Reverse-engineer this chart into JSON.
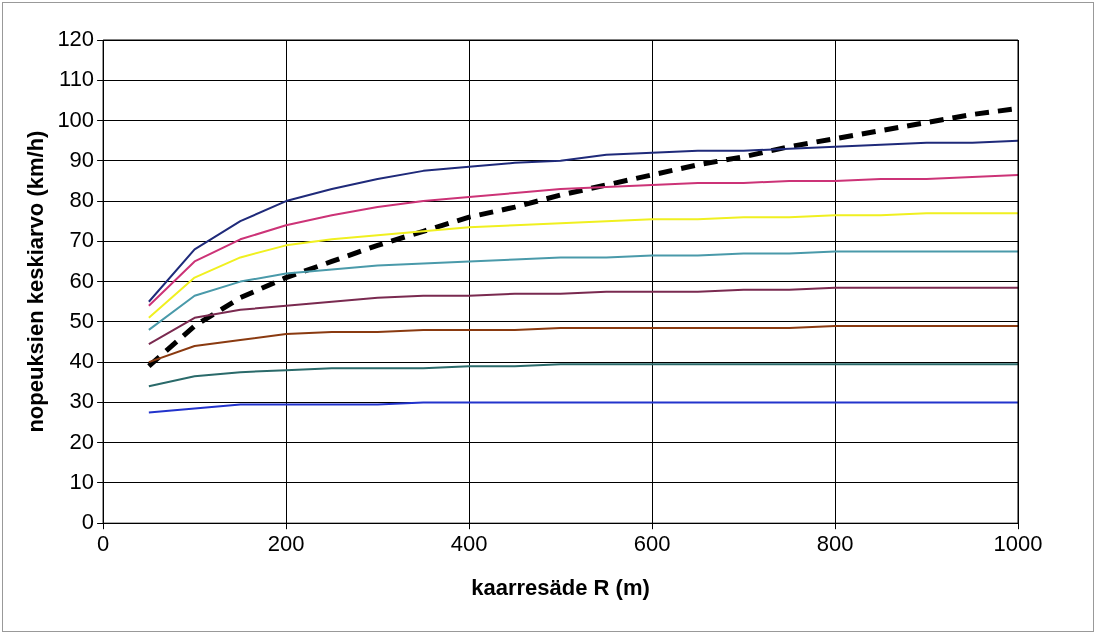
{
  "chart_data": {
    "type": "line",
    "xlabel": "kaarresäde R (m)",
    "ylabel": "nopeuksien keskiarvo (km/h)",
    "x": [
      50,
      100,
      150,
      200,
      250,
      300,
      350,
      400,
      450,
      500,
      550,
      600,
      650,
      700,
      750,
      800,
      850,
      900,
      950,
      1000
    ],
    "xlim": [
      0,
      1000
    ],
    "xticks": [
      0,
      200,
      400,
      600,
      800,
      1000
    ],
    "ylim": [
      0,
      120
    ],
    "yticks": [
      0,
      10,
      20,
      30,
      40,
      50,
      60,
      70,
      80,
      90,
      100,
      110,
      120
    ],
    "grid": true,
    "legend": false,
    "marker": "none",
    "line_style": "solid",
    "series": [
      {
        "color": "#1f2a7a",
        "values": [
          55,
          68,
          75,
          80,
          83,
          85.5,
          87.5,
          88.5,
          89.5,
          90,
          91.5,
          92,
          92.5,
          92.5,
          93,
          93.5,
          94,
          94.5,
          94.5,
          95
        ]
      },
      {
        "color": "#cc3377",
        "values": [
          54,
          65,
          70.5,
          74,
          76.5,
          78.5,
          80,
          81,
          82,
          83,
          83.5,
          84,
          84.5,
          84.5,
          85,
          85,
          85.5,
          85.5,
          86,
          86.5
        ]
      },
      {
        "color": "#f0f020",
        "values": [
          51,
          61,
          66,
          69,
          70.5,
          71.5,
          72.5,
          73.5,
          74,
          74.5,
          75,
          75.5,
          75.5,
          76,
          76,
          76.5,
          76.5,
          77,
          77,
          77
        ]
      },
      {
        "color": "#4a9aaa",
        "values": [
          48,
          56.5,
          60,
          62,
          63,
          64,
          64.5,
          65,
          65.5,
          66,
          66,
          66.5,
          66.5,
          67,
          67,
          67.5,
          67.5,
          67.5,
          67.5,
          67.5
        ]
      },
      {
        "color": "#7a2a50",
        "values": [
          44.5,
          51,
          53,
          54,
          55,
          56,
          56.5,
          56.5,
          57,
          57,
          57.5,
          57.5,
          57.5,
          58,
          58,
          58.5,
          58.5,
          58.5,
          58.5,
          58.5
        ]
      },
      {
        "color": "#8a3a10",
        "values": [
          40,
          44,
          45.5,
          47,
          47.5,
          47.5,
          48,
          48,
          48,
          48.5,
          48.5,
          48.5,
          48.5,
          48.5,
          48.5,
          49,
          49,
          49,
          49,
          49
        ]
      },
      {
        "color": "#2a6a6a",
        "values": [
          34,
          36.5,
          37.5,
          38,
          38.5,
          38.5,
          38.5,
          39,
          39,
          39.5,
          39.5,
          39.5,
          39.5,
          39.5,
          39.5,
          39.5,
          39.5,
          39.5,
          39.5,
          39.5
        ]
      },
      {
        "color": "#2233cc",
        "values": [
          27.5,
          28.5,
          29.5,
          29.5,
          29.5,
          29.5,
          30,
          30,
          30,
          30,
          30,
          30,
          30,
          30,
          30,
          30,
          30,
          30,
          30,
          30
        ]
      },
      {
        "color": "#000000",
        "line_style": "dashed",
        "values": [
          39,
          49,
          56,
          61,
          65,
          69,
          72.5,
          76,
          78.5,
          81.5,
          84,
          86.5,
          89,
          91,
          93.5,
          95.5,
          97.5,
          99.5,
          101.5,
          103
        ]
      }
    ]
  }
}
